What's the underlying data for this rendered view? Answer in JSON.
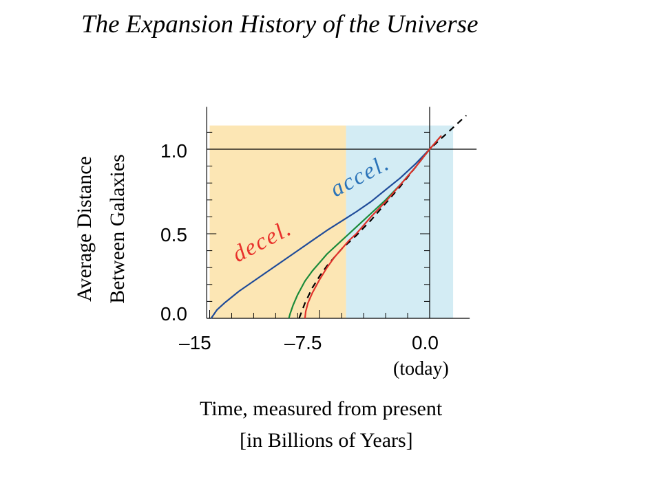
{
  "chart_data": {
    "type": "line",
    "title": "The Expansion History of the Universe",
    "ylabel": [
      "Average Distance",
      "Between Galaxies"
    ],
    "xlabel": [
      "Time, measured from present",
      "[in Billions of  Years]"
    ],
    "x_tick_labels": [
      "–15",
      "–7.5",
      "0.0"
    ],
    "x_ticks": [
      -15,
      -7.5,
      0
    ],
    "x_today_label": "(today)",
    "y_tick_labels": [
      "0.0",
      "0.5",
      "1.0"
    ],
    "y_ticks": [
      0,
      0.5,
      1.0
    ],
    "xlim": [
      -15.2,
      3.2
    ],
    "ylim": [
      -0.05,
      1.25
    ],
    "grid": false,
    "regions": [
      {
        "label": "decel.",
        "x_range": [
          -15,
          -5.7
        ],
        "y_range": [
          0,
          1.14
        ],
        "color": "#fce6b4",
        "label_color": "#e8312b"
      },
      {
        "label": "accel.",
        "x_range": [
          -5.7,
          1.6
        ],
        "y_range": [
          0,
          1.14
        ],
        "color": "#d3ecf4",
        "label_color": "#2a73b8"
      }
    ],
    "series": [
      {
        "color": "#1f4b99",
        "style": "solid",
        "x": [
          -14.9,
          -14.5,
          -14,
          -13,
          -12,
          -11,
          -10,
          -9,
          -8,
          -7,
          -6,
          -5,
          -4,
          -3,
          -2,
          -1,
          0
        ],
        "y": [
          0,
          0.05,
          0.09,
          0.16,
          0.22,
          0.28,
          0.34,
          0.4,
          0.46,
          0.52,
          0.575,
          0.63,
          0.69,
          0.76,
          0.83,
          0.91,
          1.0
        ]
      },
      {
        "color": "#1a8a3a",
        "style": "solid",
        "x": [
          -9.6,
          -9.5,
          -9.3,
          -9,
          -8.5,
          -8,
          -7.5,
          -7,
          -6.5,
          -6,
          -5.5,
          -5,
          -4,
          -3,
          -2,
          -1,
          0,
          0.5,
          0.8
        ],
        "y": [
          0,
          0.03,
          0.08,
          0.14,
          0.22,
          0.28,
          0.33,
          0.38,
          0.42,
          0.46,
          0.5,
          0.54,
          0.62,
          0.7,
          0.79,
          0.89,
          1.0,
          1.05,
          1.08
        ]
      },
      {
        "color": "#000000",
        "style": "dashed",
        "x": [
          -8.9,
          -8.5,
          -8,
          -7.5,
          -7,
          -6.5,
          -6,
          -5.5,
          -5,
          -4,
          -3,
          -2,
          -1,
          0,
          1,
          2.5
        ],
        "y": [
          0,
          0.09,
          0.18,
          0.25,
          0.31,
          0.36,
          0.41,
          0.45,
          0.49,
          0.58,
          0.68,
          0.78,
          0.89,
          1.0,
          1.08,
          1.2
        ]
      },
      {
        "color": "#e0322b",
        "style": "solid",
        "x": [
          -8.5,
          -8.45,
          -8.3,
          -8,
          -7.5,
          -7,
          -6.5,
          -6,
          -5.5,
          -5,
          -4,
          -3,
          -2,
          -1,
          0,
          0.5,
          0.8
        ],
        "y": [
          0,
          0.04,
          0.09,
          0.15,
          0.23,
          0.3,
          0.36,
          0.41,
          0.46,
          0.5,
          0.6,
          0.69,
          0.79,
          0.89,
          1.0,
          1.05,
          1.08
        ]
      }
    ]
  }
}
